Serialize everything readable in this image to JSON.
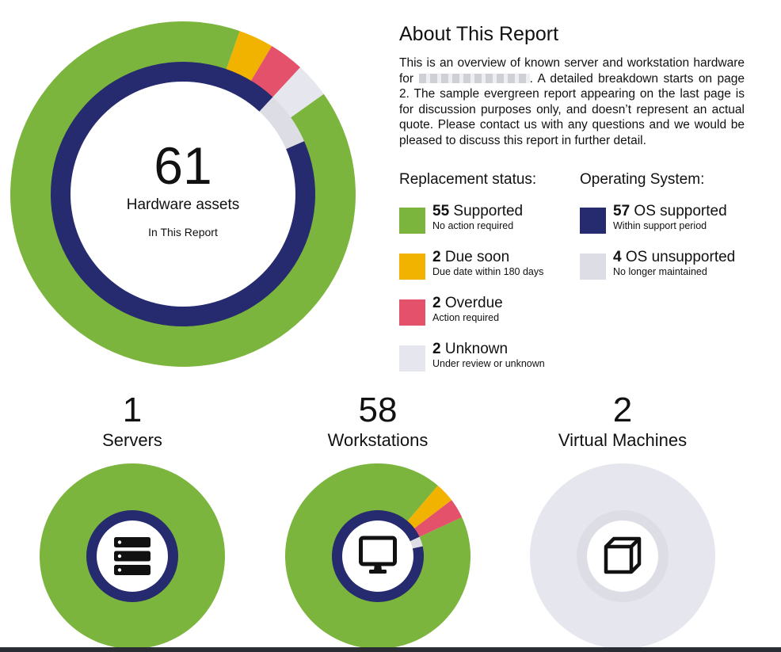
{
  "about": {
    "title": "About This Report",
    "text_before": "This is an overview of known server and workstation hardware for",
    "text_after": ". A detailed breakdown starts on page 2. The sample evergreen report appearing on the last page is for discussion purposes only, and doesn’t represent an actual quote. Please contact us with any questions and we would be pleased to discuss this report in further detail."
  },
  "colors": {
    "supported": "#7cb53d",
    "due_soon": "#f2b200",
    "overdue": "#e3516a",
    "unknown": "#e5e6ee",
    "os_supported": "#262a6e",
    "os_unsupported": "#dcdde5"
  },
  "legend": {
    "replacement_title": "Replacement status:",
    "os_title": "Operating System:",
    "replacement": [
      {
        "count": "55",
        "label": "Supported",
        "sub": "No action required",
        "color": "#7cb53d"
      },
      {
        "count": "2",
        "label": "Due soon",
        "sub": "Due date within 180 days",
        "color": "#f2b200"
      },
      {
        "count": "2",
        "label": "Overdue",
        "sub": "Action required",
        "color": "#e3516a"
      },
      {
        "count": "2",
        "label": "Unknown",
        "sub": "Under review or unknown",
        "color": "#e5e6ee"
      }
    ],
    "os": [
      {
        "count": "57",
        "label": "OS supported",
        "sub": "Within support period",
        "color": "#262a6e"
      },
      {
        "count": "4",
        "label": "OS unsupported",
        "sub": "No longer maintained",
        "color": "#dcdde5"
      }
    ]
  },
  "chart_data": [
    {
      "type": "pie",
      "variant": "donut",
      "center_value": "61",
      "center_label": "Hardware assets",
      "center_sublabel": "In This Report",
      "start_angle_deg": 90,
      "outer_ring": {
        "categories": [
          "Supported",
          "Due soon",
          "Overdue",
          "Unknown"
        ],
        "values": [
          55,
          2,
          2,
          2
        ]
      },
      "inner_ring": {
        "categories": [
          "OS supported",
          "OS unsupported"
        ],
        "values": [
          57,
          4
        ]
      }
    },
    {
      "type": "pie",
      "variant": "donut",
      "icon": "server-icon",
      "value": "1",
      "label": "Servers",
      "outer_ring": {
        "categories": [
          "Supported"
        ],
        "values": [
          1
        ]
      },
      "inner_ring": {
        "categories": [
          "OS supported"
        ],
        "values": [
          1
        ]
      }
    },
    {
      "type": "pie",
      "variant": "donut",
      "icon": "monitor-icon",
      "value": "58",
      "label": "Workstations",
      "outer_ring": {
        "categories": [
          "Supported",
          "Due soon",
          "Overdue",
          "Unknown"
        ],
        "values": [
          54,
          2,
          2,
          0
        ]
      },
      "inner_ring": {
        "categories": [
          "OS supported",
          "OS unsupported"
        ],
        "values": [
          56,
          2
        ]
      }
    },
    {
      "type": "pie",
      "variant": "donut",
      "icon": "cube-icon",
      "value": "2",
      "label": "Virtual Machines",
      "outer_ring": {
        "categories": [
          "Unknown"
        ],
        "values": [
          2
        ]
      },
      "inner_ring": {
        "categories": [
          "OS unsupported"
        ],
        "values": [
          2
        ]
      }
    }
  ]
}
